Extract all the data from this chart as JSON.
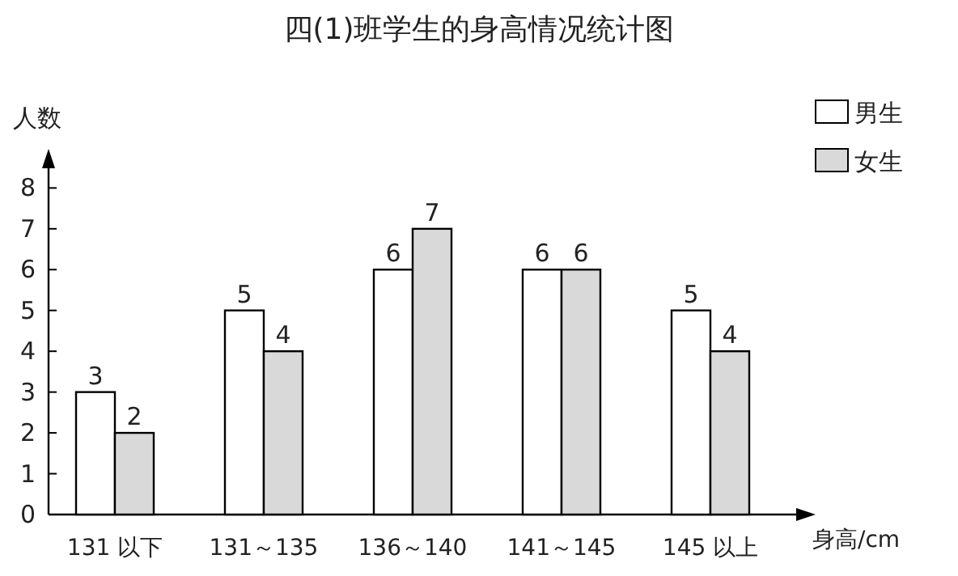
{
  "chart_data": {
    "type": "bar",
    "title": "四(1)班学生的身高情况统计图",
    "ylabel": "人数",
    "xlabel": "身高/cm",
    "categories": [
      "131 以下",
      "131～135",
      "136～140",
      "141～145",
      "145 以上"
    ],
    "series": [
      {
        "name": "男生",
        "color": "#ffffff",
        "values": [
          3,
          5,
          6,
          6,
          5
        ]
      },
      {
        "name": "女生",
        "color": "#d9d9d9",
        "values": [
          2,
          4,
          7,
          6,
          4
        ]
      }
    ],
    "ylim": [
      0,
      8.8
    ],
    "yticks": [
      0,
      1,
      2,
      3,
      4,
      5,
      6,
      7,
      8
    ],
    "data_labels": true,
    "legend": "top right",
    "grid": false
  }
}
